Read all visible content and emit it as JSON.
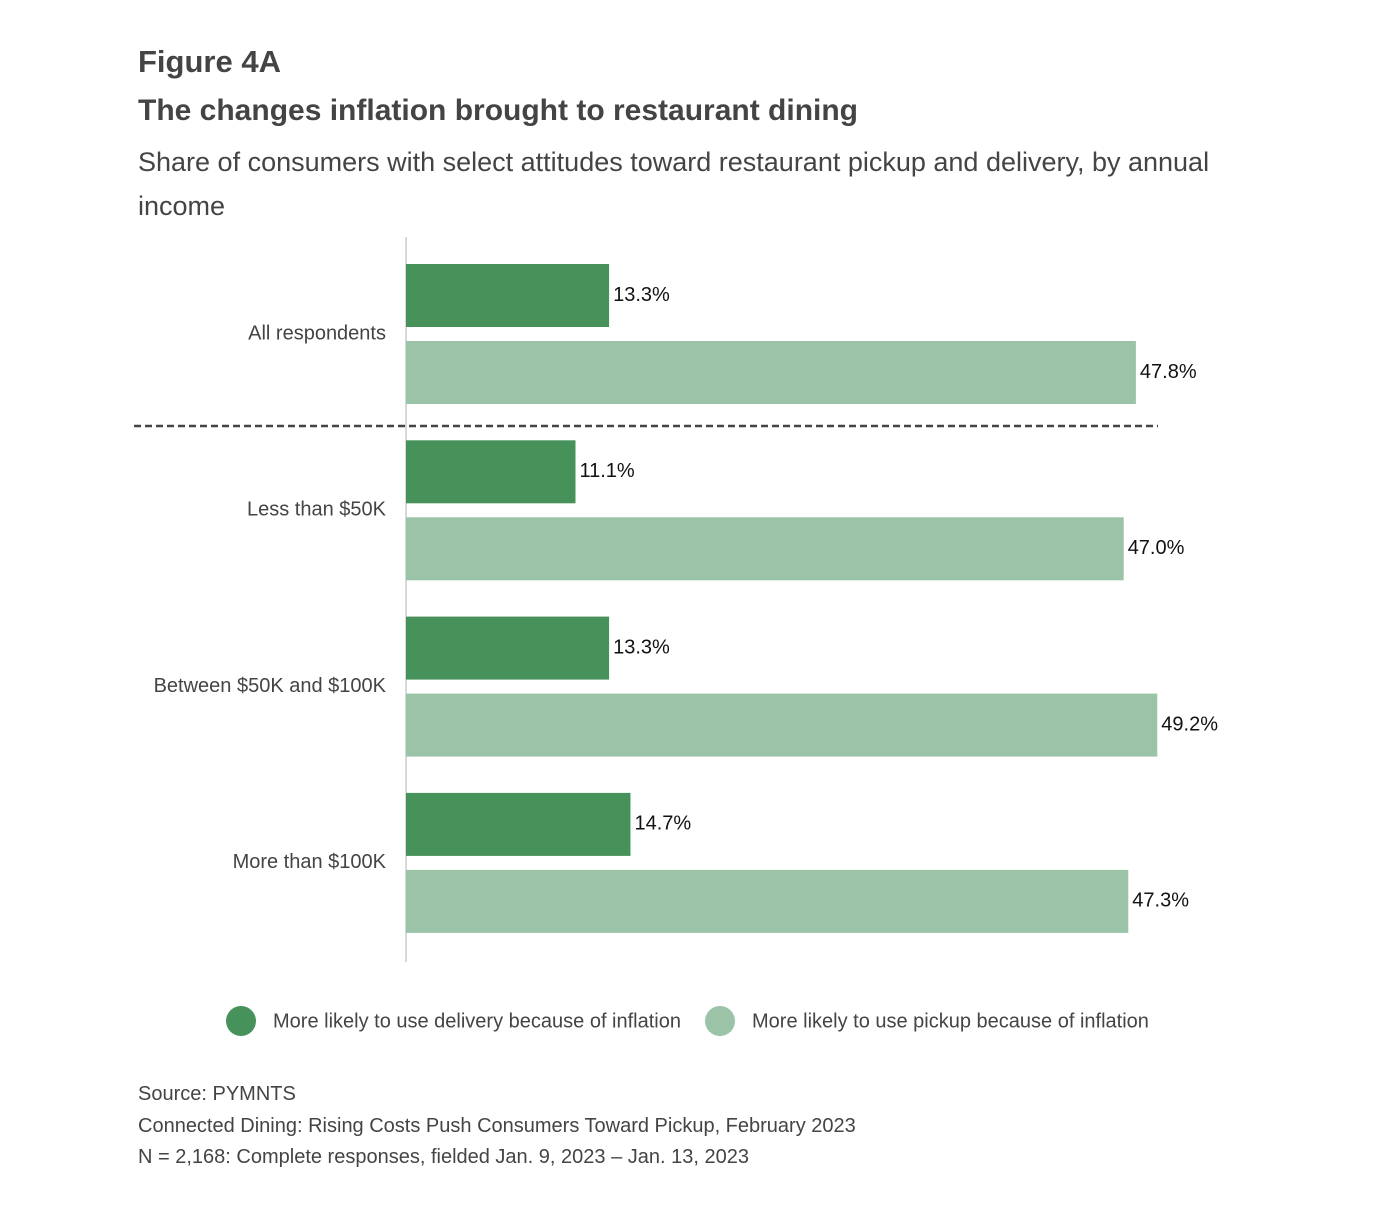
{
  "chart_data": {
    "type": "bar",
    "orientation": "horizontal",
    "label": "Figure 4A",
    "title": "The changes inflation brought to restaurant dining",
    "subtitle": "Share of consumers with select attitudes toward restaurant pickup and delivery, by annual income",
    "categories": [
      "All respondents",
      "Less than $50K",
      "Between $50K and $100K",
      "More than $100K"
    ],
    "series": [
      {
        "name": "More likely to use delivery because of inflation",
        "color": "#47925a",
        "values": [
          13.3,
          11.1,
          13.3,
          14.7
        ],
        "value_labels": [
          "13.3%",
          "11.1%",
          "13.3%",
          "14.7%"
        ]
      },
      {
        "name": "More likely to use pickup because of inflation",
        "color": "#9bc3a8",
        "values": [
          47.8,
          47.0,
          49.2,
          47.3
        ],
        "value_labels": [
          "47.8%",
          "47.0%",
          "49.2%",
          "47.3%"
        ]
      }
    ],
    "xlim": [
      0,
      50
    ],
    "notes": [
      "Source: PYMNTS",
      "Connected Dining: Rising Costs Push Consumers Toward Pickup, February 2023",
      "N = 2,168: Complete responses, fielded Jan. 9, 2023 – Jan. 13, 2023"
    ]
  }
}
